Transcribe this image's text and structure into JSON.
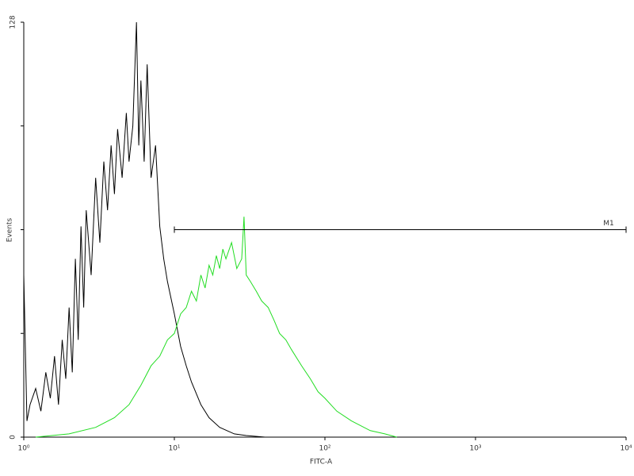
{
  "chart_data": {
    "type": "line",
    "xlabel": "FITC-A",
    "ylabel": "Events",
    "xscale": "log",
    "xlim": [
      1,
      10000
    ],
    "ylim": [
      0,
      128
    ],
    "xticks": [
      {
        "value": 1,
        "label": "10⁰"
      },
      {
        "value": 10,
        "label": "10¹"
      },
      {
        "value": 100,
        "label": "10²"
      },
      {
        "value": 1000,
        "label": "10³"
      },
      {
        "value": 10000,
        "label": "10⁴"
      }
    ],
    "yticks": [
      0,
      128
    ],
    "yminorticks": [
      32,
      64,
      96
    ],
    "marker": {
      "label": "M1",
      "x": [
        10,
        10000
      ],
      "y": 64
    },
    "series": [
      {
        "color": "#000000",
        "x": [
          1.0,
          1.05,
          1.1,
          1.2,
          1.3,
          1.4,
          1.5,
          1.6,
          1.7,
          1.8,
          1.9,
          2.0,
          2.1,
          2.2,
          2.3,
          2.4,
          2.5,
          2.6,
          2.8,
          3.0,
          3.2,
          3.4,
          3.6,
          3.8,
          4.0,
          4.2,
          4.5,
          4.8,
          5.0,
          5.3,
          5.6,
          5.8,
          6.0,
          6.3,
          6.6,
          7.0,
          7.5,
          8.0,
          8.5,
          9.0,
          10,
          11,
          12,
          13,
          15,
          17,
          20,
          25,
          30,
          40
        ],
        "values": [
          50,
          5,
          10,
          15,
          8,
          20,
          12,
          25,
          10,
          30,
          18,
          40,
          20,
          55,
          30,
          65,
          40,
          70,
          50,
          80,
          60,
          85,
          70,
          90,
          75,
          95,
          80,
          100,
          85,
          96,
          128,
          90,
          110,
          85,
          115,
          80,
          90,
          65,
          55,
          48,
          38,
          28,
          22,
          17,
          10,
          6,
          3,
          1,
          0.5,
          0
        ]
      },
      {
        "color": "#22dd22",
        "x": [
          1.2,
          2,
          3,
          4,
          5,
          6,
          7,
          8,
          9,
          10,
          11,
          12,
          13,
          14,
          15,
          16,
          17,
          18,
          19,
          20,
          21,
          22,
          24,
          26,
          28,
          29,
          30,
          32,
          35,
          38,
          42,
          46,
          50,
          55,
          60,
          70,
          80,
          90,
          100,
          120,
          150,
          200,
          250,
          300
        ],
        "values": [
          0,
          1,
          3,
          6,
          10,
          16,
          22,
          25,
          30,
          32,
          38,
          40,
          45,
          42,
          50,
          46,
          53,
          50,
          56,
          52,
          58,
          55,
          60,
          52,
          55,
          68,
          50,
          48,
          45,
          42,
          40,
          36,
          32,
          30,
          27,
          22,
          18,
          14,
          12,
          8,
          5,
          2,
          1,
          0
        ]
      }
    ]
  }
}
